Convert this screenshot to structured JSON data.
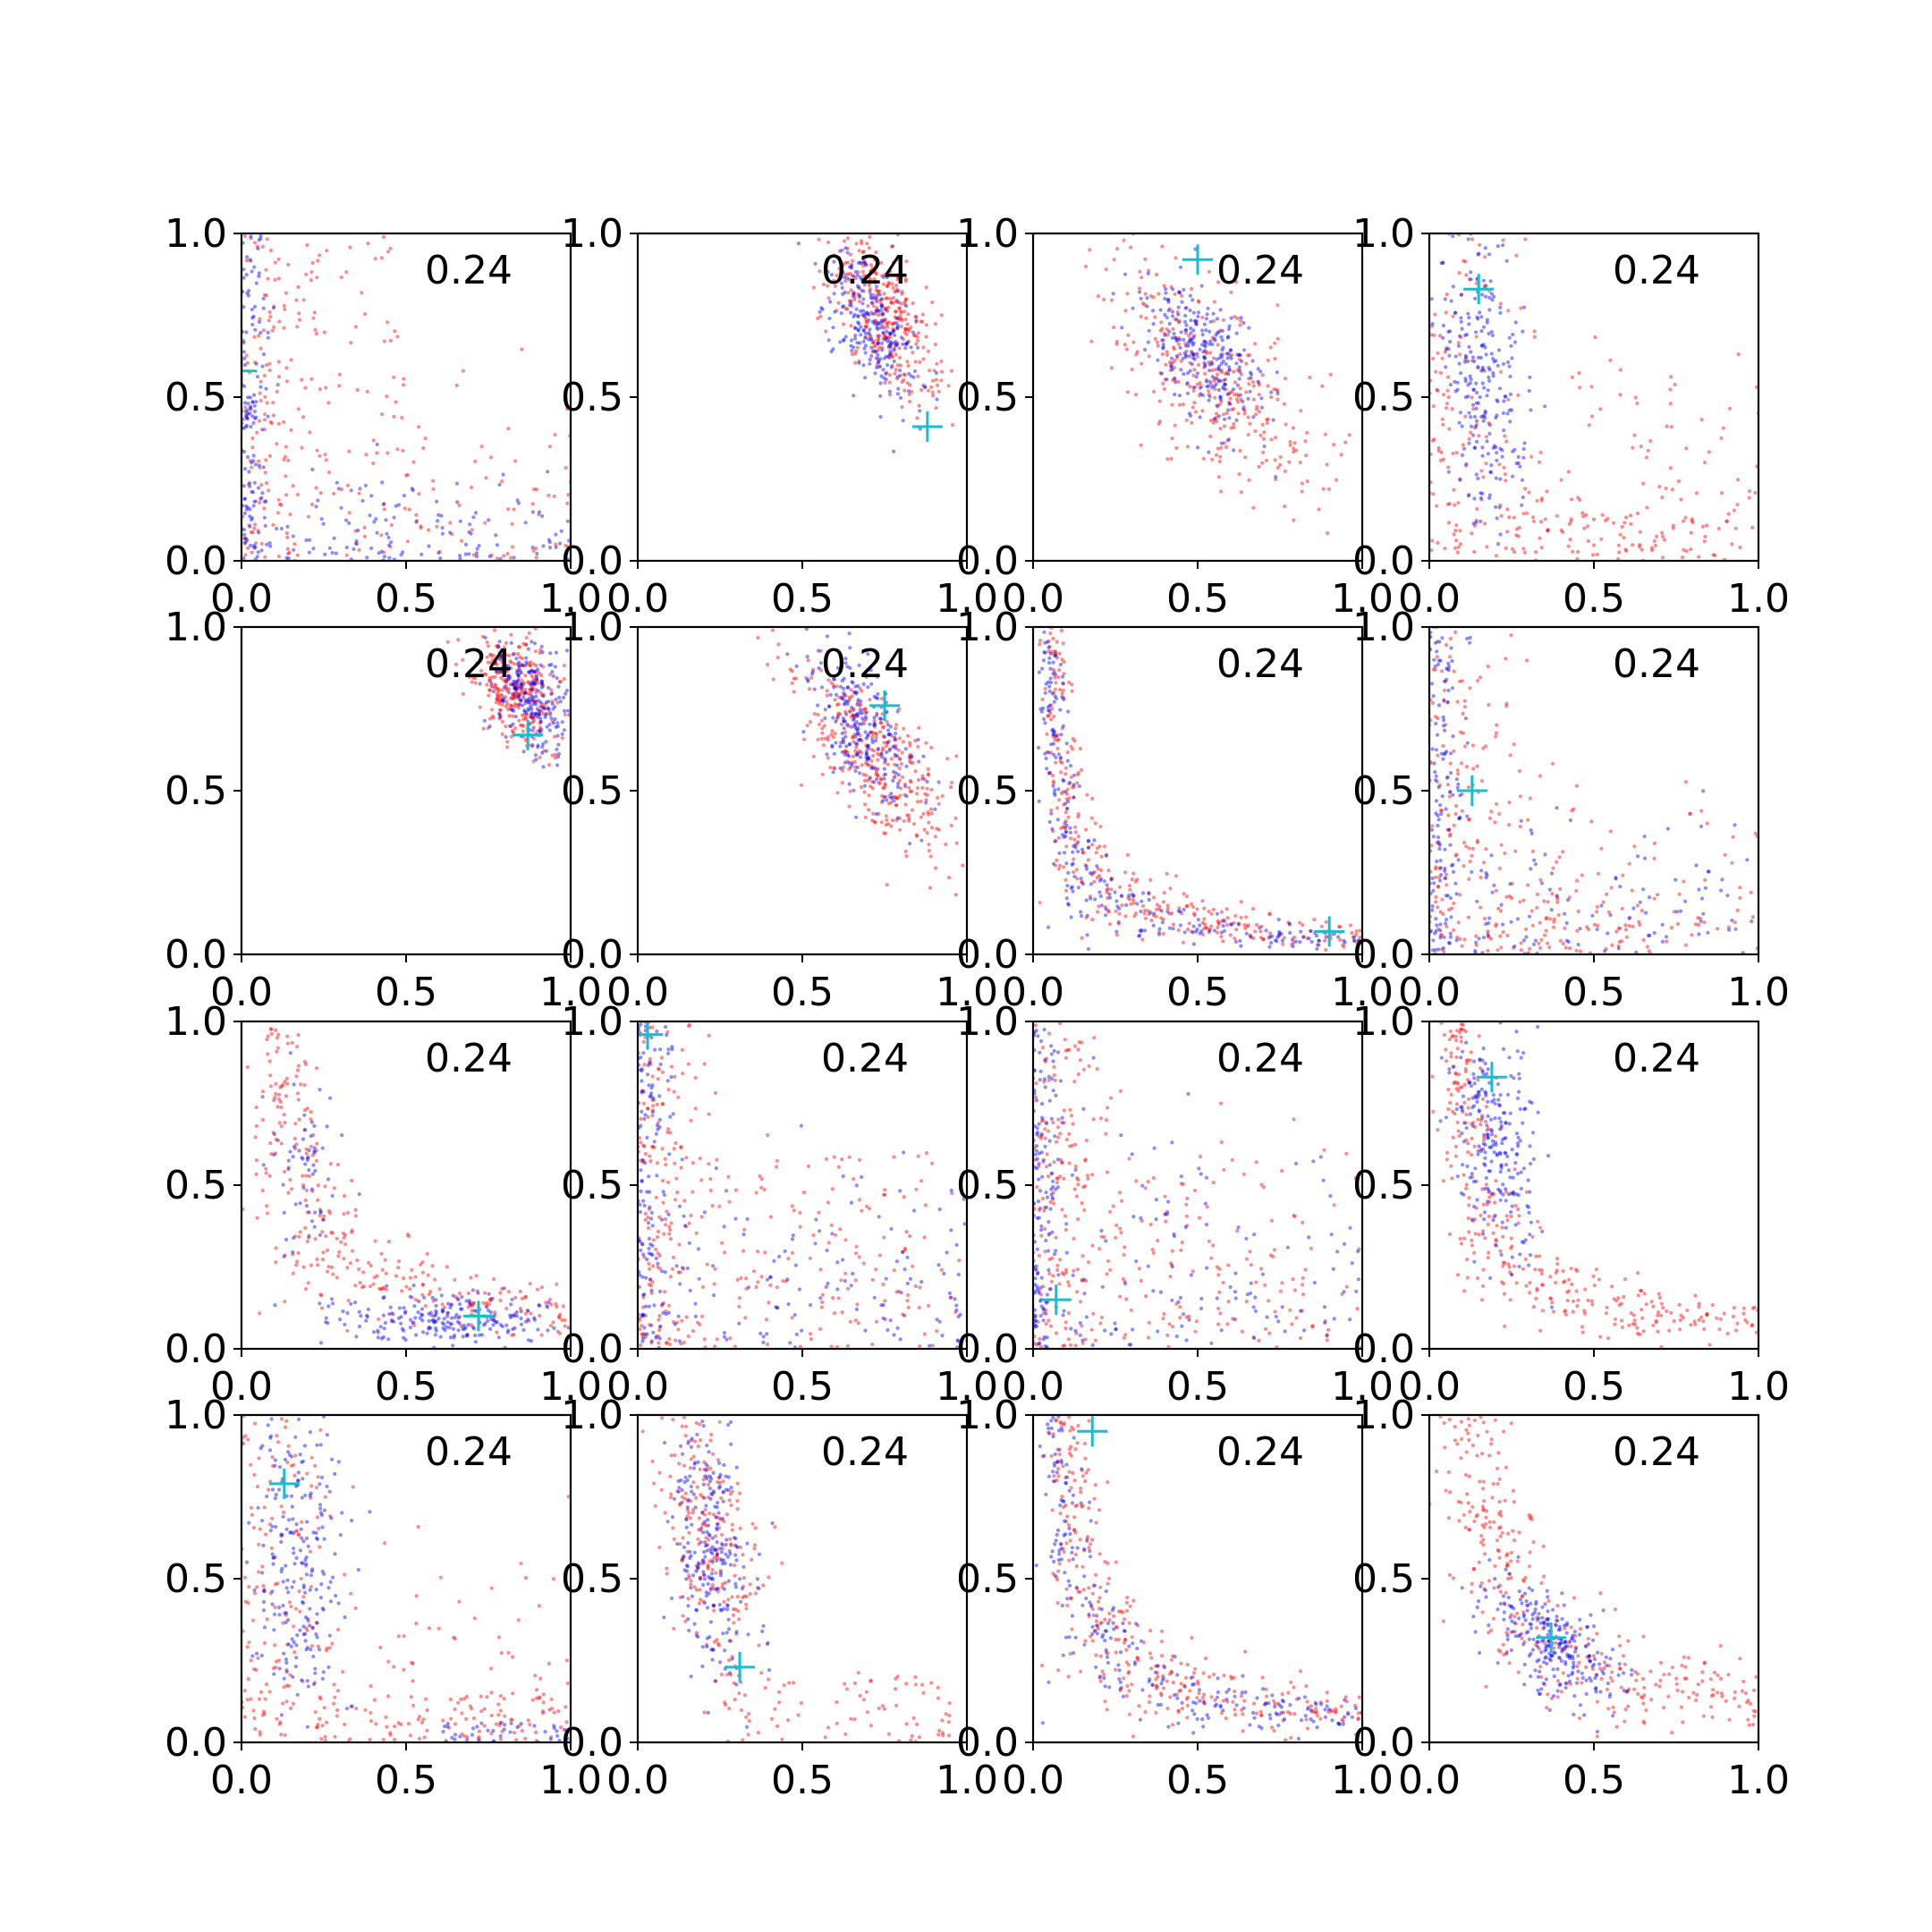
{
  "figure": {
    "layout": {
      "rows": 4,
      "cols": 4
    },
    "marker_colors": {
      "series_a": "#ff0000",
      "series_b": "#0000ff",
      "marker": "#17becf"
    }
  },
  "chart_data": [
    {
      "type": "scatter",
      "annotation": "0.24",
      "xlim": [
        0,
        1
      ],
      "ylim": [
        0,
        1
      ],
      "xticks": [
        "0.0",
        "0.5",
        "1.0"
      ],
      "yticks": [
        "0.0",
        "0.5",
        "1.0"
      ],
      "marker": {
        "x": 0.0,
        "y": 0.58
      },
      "clusters": {
        "red": [
          {
            "shape": "L",
            "x0": 0.0,
            "y0": 0.0,
            "xs": 0.1,
            "ys": 0.25,
            "n": 220
          },
          {
            "shape": "rect",
            "x0": 0.08,
            "x1": 0.5,
            "y0": 0.3,
            "y1": 1.0,
            "n": 70
          }
        ],
        "blue": [
          {
            "shape": "L",
            "x0": 0.0,
            "y0": 0.0,
            "xs": 0.04,
            "ys": 0.12,
            "n": 260
          }
        ]
      }
    },
    {
      "type": "scatter",
      "annotation": "0.24",
      "xlim": [
        0,
        1
      ],
      "ylim": [
        0,
        1
      ],
      "xticks": [
        "0.0",
        "0.5",
        "1.0"
      ],
      "yticks": [
        "0.0",
        "0.5",
        "1.0"
      ],
      "marker": {
        "x": 0.88,
        "y": 0.41
      },
      "clusters": {
        "red": [
          {
            "shape": "band",
            "cx": 0.75,
            "cy": 0.75,
            "sx": 0.08,
            "sy": 0.13,
            "rho": -0.6,
            "n": 340
          }
        ],
        "blue": [
          {
            "shape": "band",
            "cx": 0.71,
            "cy": 0.72,
            "sx": 0.07,
            "sy": 0.12,
            "rho": -0.6,
            "n": 240
          }
        ]
      }
    },
    {
      "type": "scatter",
      "annotation": "0.24",
      "xlim": [
        0,
        1
      ],
      "ylim": [
        0,
        1
      ],
      "xticks": [
        "0.0",
        "0.5",
        "1.0"
      ],
      "yticks": [
        "0.0",
        "0.5",
        "1.0"
      ],
      "marker": {
        "x": 0.5,
        "y": 0.92
      },
      "clusters": {
        "red": [
          {
            "shape": "band",
            "cx": 0.55,
            "cy": 0.55,
            "sx": 0.16,
            "sy": 0.18,
            "rho": -0.7,
            "n": 340
          }
        ],
        "blue": [
          {
            "shape": "band",
            "cx": 0.52,
            "cy": 0.63,
            "sx": 0.09,
            "sy": 0.12,
            "rho": -0.5,
            "n": 260
          }
        ]
      }
    },
    {
      "type": "scatter",
      "annotation": "0.24",
      "xlim": [
        0,
        1
      ],
      "ylim": [
        0,
        1
      ],
      "xticks": [
        "0.0",
        "0.5",
        "1.0"
      ],
      "yticks": [
        "0.0",
        "0.5",
        "1.0"
      ],
      "marker": {
        "x": 0.15,
        "y": 0.83
      },
      "clusters": {
        "red": [
          {
            "shape": "L",
            "x0": 0.0,
            "y0": 0.0,
            "xs": 0.15,
            "ys": 0.35,
            "n": 240
          },
          {
            "shape": "rect",
            "x0": 0.25,
            "x1": 0.95,
            "y0": 0.0,
            "y1": 0.15,
            "n": 70
          }
        ],
        "blue": [
          {
            "shape": "band",
            "cx": 0.17,
            "cy": 0.55,
            "sx": 0.06,
            "sy": 0.22,
            "rho": -0.2,
            "n": 240
          }
        ]
      }
    },
    {
      "type": "scatter",
      "annotation": "0.24",
      "xlim": [
        0,
        1
      ],
      "ylim": [
        0,
        1
      ],
      "xticks": [
        "0.0",
        "0.5",
        "1.0"
      ],
      "yticks": [
        "0.0",
        "0.5",
        "1.0"
      ],
      "marker": {
        "x": 0.87,
        "y": 0.67
      },
      "clusters": {
        "red": [
          {
            "shape": "band",
            "cx": 0.83,
            "cy": 0.82,
            "sx": 0.07,
            "sy": 0.09,
            "rho": -0.3,
            "n": 320
          }
        ],
        "blue": [
          {
            "shape": "band",
            "cx": 0.88,
            "cy": 0.78,
            "sx": 0.06,
            "sy": 0.09,
            "rho": -0.3,
            "n": 220
          }
        ]
      }
    },
    {
      "type": "scatter",
      "annotation": "0.24",
      "xlim": [
        0,
        1
      ],
      "ylim": [
        0,
        1
      ],
      "xticks": [
        "0.0",
        "0.5",
        "1.0"
      ],
      "yticks": [
        "0.0",
        "0.5",
        "1.0"
      ],
      "marker": {
        "x": 0.75,
        "y": 0.76
      },
      "clusters": {
        "red": [
          {
            "shape": "band",
            "cx": 0.72,
            "cy": 0.6,
            "sx": 0.12,
            "sy": 0.16,
            "rho": -0.75,
            "n": 340
          }
        ],
        "blue": [
          {
            "shape": "band",
            "cx": 0.68,
            "cy": 0.7,
            "sx": 0.08,
            "sy": 0.12,
            "rho": -0.6,
            "n": 240
          }
        ]
      }
    },
    {
      "type": "scatter",
      "annotation": "0.24",
      "xlim": [
        0,
        1
      ],
      "ylim": [
        0,
        1
      ],
      "xticks": [
        "0.0",
        "0.5",
        "1.0"
      ],
      "yticks": [
        "0.0",
        "0.5",
        "1.0"
      ],
      "marker": {
        "x": 0.9,
        "y": 0.07
      },
      "clusters": {
        "red": [
          {
            "shape": "curve",
            "a": 0.06,
            "n": 340
          }
        ],
        "blue": [
          {
            "shape": "curve",
            "a": 0.045,
            "n": 260
          }
        ]
      }
    },
    {
      "type": "scatter",
      "annotation": "0.24",
      "xlim": [
        0,
        1
      ],
      "ylim": [
        0,
        1
      ],
      "xticks": [
        "0.0",
        "0.5",
        "1.0"
      ],
      "yticks": [
        "0.0",
        "0.5",
        "1.0"
      ],
      "marker": {
        "x": 0.13,
        "y": 0.5
      },
      "clusters": {
        "red": [
          {
            "shape": "L",
            "x0": 0.0,
            "y0": 0.0,
            "xs": 0.12,
            "ys": 0.28,
            "n": 260
          },
          {
            "shape": "rect",
            "x0": 0.2,
            "x1": 0.7,
            "y0": 0.0,
            "y1": 0.2,
            "n": 60
          }
        ],
        "blue": [
          {
            "shape": "L",
            "x0": 0.0,
            "y0": 0.0,
            "xs": 0.06,
            "ys": 0.22,
            "n": 240
          }
        ]
      }
    },
    {
      "type": "scatter",
      "annotation": "0.24",
      "xlim": [
        0,
        1
      ],
      "ylim": [
        0,
        1
      ],
      "xticks": [
        "0.0",
        "0.5",
        "1.0"
      ],
      "yticks": [
        "0.0",
        "0.5",
        "1.0"
      ],
      "marker": {
        "x": 0.72,
        "y": 0.1
      },
      "clusters": {
        "red": [
          {
            "shape": "curve",
            "a": 0.13,
            "n": 320
          }
        ],
        "blue": [
          {
            "shape": "band",
            "cx": 0.65,
            "cy": 0.09,
            "sx": 0.17,
            "sy": 0.04,
            "rho": 0.0,
            "n": 220
          },
          {
            "shape": "band",
            "cx": 0.2,
            "cy": 0.55,
            "sx": 0.06,
            "sy": 0.15,
            "rho": 0.0,
            "n": 60
          }
        ]
      }
    },
    {
      "type": "scatter",
      "annotation": "0.24",
      "xlim": [
        0,
        1
      ],
      "ylim": [
        0,
        1
      ],
      "xticks": [
        "0.0",
        "0.5",
        "1.0"
      ],
      "yticks": [
        "0.0",
        "0.5",
        "1.0"
      ],
      "marker": {
        "x": 0.03,
        "y": 0.96
      },
      "clusters": {
        "red": [
          {
            "shape": "L",
            "x0": 0.0,
            "y0": 0.0,
            "xs": 0.1,
            "ys": 0.3,
            "n": 260
          },
          {
            "shape": "rect",
            "x0": 0.1,
            "x1": 0.9,
            "y0": 0.0,
            "y1": 0.6,
            "n": 80
          }
        ],
        "blue": [
          {
            "shape": "L",
            "x0": 0.0,
            "y0": 0.0,
            "xs": 0.05,
            "ys": 0.28,
            "n": 260
          }
        ]
      }
    },
    {
      "type": "scatter",
      "annotation": "0.24",
      "xlim": [
        0,
        1
      ],
      "ylim": [
        0,
        1
      ],
      "xticks": [
        "0.0",
        "0.5",
        "1.0"
      ],
      "yticks": [
        "0.0",
        "0.5",
        "1.0"
      ],
      "marker": {
        "x": 0.07,
        "y": 0.15
      },
      "clusters": {
        "red": [
          {
            "shape": "L",
            "x0": 0.0,
            "y0": 0.0,
            "xs": 0.1,
            "ys": 0.32,
            "n": 260
          },
          {
            "shape": "rect",
            "x0": 0.1,
            "x1": 0.8,
            "y0": 0.0,
            "y1": 0.6,
            "n": 70
          }
        ],
        "blue": [
          {
            "shape": "L",
            "x0": 0.0,
            "y0": 0.0,
            "xs": 0.04,
            "ys": 0.3,
            "n": 260
          }
        ]
      }
    },
    {
      "type": "scatter",
      "annotation": "0.24",
      "xlim": [
        0,
        1
      ],
      "ylim": [
        0,
        1
      ],
      "xticks": [
        "0.0",
        "0.5",
        "1.0"
      ],
      "yticks": [
        "0.0",
        "0.5",
        "1.0"
      ],
      "marker": {
        "x": 0.19,
        "y": 0.83
      },
      "clusters": {
        "red": [
          {
            "shape": "curve",
            "a": 0.09,
            "n": 340
          }
        ],
        "blue": [
          {
            "shape": "band",
            "cx": 0.2,
            "cy": 0.65,
            "sx": 0.07,
            "sy": 0.18,
            "rho": -0.3,
            "n": 240
          }
        ]
      }
    },
    {
      "type": "scatter",
      "annotation": "0.24",
      "xlim": [
        0,
        1
      ],
      "ylim": [
        0,
        1
      ],
      "xticks": [
        "0.0",
        "0.5",
        "1.0"
      ],
      "yticks": [
        "0.0",
        "0.5",
        "1.0"
      ],
      "marker": {
        "x": 0.13,
        "y": 0.79
      },
      "clusters": {
        "red": [
          {
            "shape": "L",
            "x0": 0.0,
            "y0": 0.0,
            "xs": 0.13,
            "ys": 0.3,
            "n": 240
          },
          {
            "shape": "rect",
            "x0": 0.2,
            "x1": 1.0,
            "y0": 0.0,
            "y1": 0.15,
            "n": 80
          }
        ],
        "blue": [
          {
            "shape": "band",
            "cx": 0.16,
            "cy": 0.55,
            "sx": 0.07,
            "sy": 0.25,
            "rho": 0.0,
            "n": 220
          },
          {
            "shape": "rect",
            "x0": 0.6,
            "x1": 1.0,
            "y0": 0.0,
            "y1": 0.06,
            "n": 40
          }
        ]
      }
    },
    {
      "type": "scatter",
      "annotation": "0.24",
      "xlim": [
        0,
        1
      ],
      "ylim": [
        0,
        1
      ],
      "xticks": [
        "0.0",
        "0.5",
        "1.0"
      ],
      "yticks": [
        "0.0",
        "0.5",
        "1.0"
      ],
      "marker": {
        "x": 0.31,
        "y": 0.23
      },
      "clusters": {
        "red": [
          {
            "shape": "band",
            "cx": 0.23,
            "cy": 0.6,
            "sx": 0.08,
            "sy": 0.22,
            "rho": -0.4,
            "n": 240
          },
          {
            "shape": "rect",
            "x0": 0.25,
            "x1": 0.95,
            "y0": 0.0,
            "y1": 0.22,
            "n": 80
          }
        ],
        "blue": [
          {
            "shape": "band",
            "cx": 0.22,
            "cy": 0.6,
            "sx": 0.06,
            "sy": 0.2,
            "rho": -0.3,
            "n": 240
          }
        ]
      }
    },
    {
      "type": "scatter",
      "annotation": "0.24",
      "xlim": [
        0,
        1
      ],
      "ylim": [
        0,
        1
      ],
      "xticks": [
        "0.0",
        "0.5",
        "1.0"
      ],
      "yticks": [
        "0.0",
        "0.5",
        "1.0"
      ],
      "marker": {
        "x": 0.18,
        "y": 0.95
      },
      "clusters": {
        "red": [
          {
            "shape": "curve",
            "a": 0.1,
            "n": 340
          }
        ],
        "blue": [
          {
            "shape": "curve",
            "a": 0.08,
            "n": 240
          }
        ]
      }
    },
    {
      "type": "scatter",
      "annotation": "0.24",
      "xlim": [
        0,
        1
      ],
      "ylim": [
        0,
        1
      ],
      "xticks": [
        "0.0",
        "0.5",
        "1.0"
      ],
      "yticks": [
        "0.0",
        "0.5",
        "1.0"
      ],
      "marker": {
        "x": 0.37,
        "y": 0.32
      },
      "clusters": {
        "red": [
          {
            "shape": "curve",
            "a": 0.16,
            "n": 340
          }
        ],
        "blue": [
          {
            "shape": "band",
            "cx": 0.37,
            "cy": 0.3,
            "sx": 0.1,
            "sy": 0.1,
            "rho": -0.6,
            "n": 260
          }
        ]
      }
    }
  ]
}
